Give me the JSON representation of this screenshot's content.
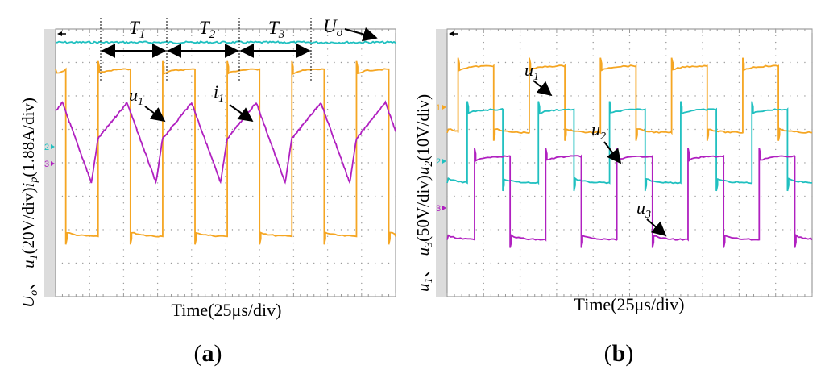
{
  "figure": {
    "a": {
      "tag_open": "(",
      "tag_letter": "a",
      "tag_close": ")"
    },
    "b": {
      "tag_open": "(",
      "tag_letter": "b",
      "tag_close": ")"
    }
  },
  "colors": {
    "ch1": "#f5a623",
    "ch2": "#20c0c0",
    "ch3": "#b020c0",
    "grid": "#999999"
  },
  "chart_data": [
    {
      "type": "line",
      "panel": "a",
      "title": "",
      "xlabel": "Time(25μs/div)",
      "ylabel": {
        "p1": "U",
        "p1_sub": "o",
        "p2": "、",
        "p3": "u",
        "p3_sub": "1",
        "p4": "(20V/div)",
        "p5": "i",
        "p5_sub": "p",
        "p6": "(1.88A/div)"
      },
      "x_divisions": 10,
      "y_divisions": 8,
      "grid": true,
      "channel_markers": [
        "2",
        "3"
      ],
      "annotations": {
        "T1": {
          "base": "T",
          "sub": "1"
        },
        "T2": {
          "base": "T",
          "sub": "2"
        },
        "T3": {
          "base": "T",
          "sub": "3"
        },
        "Uo": {
          "base": "U",
          "sub": "o"
        },
        "u1": {
          "base": "u",
          "sub": "1"
        },
        "i1": {
          "base": "i",
          "sub": "1"
        }
      },
      "series": [
        {
          "name": "Uo",
          "color": "#20c0c0",
          "shape": "dc",
          "level_div": 7.6
        },
        {
          "name": "u1",
          "color": "#f5a623",
          "shape": "square",
          "high_div": 6.8,
          "low_div": 1.8,
          "period_div": 1.9,
          "first_rise_div": 1.25
        },
        {
          "name": "ip",
          "color": "#b020c0",
          "shape": "trapezoid",
          "high_div": 5.8,
          "low_div": 3.4,
          "period_div": 1.9
        }
      ]
    },
    {
      "type": "line",
      "panel": "b",
      "title": "",
      "xlabel": "Time(25μs/div)",
      "ylabel": {
        "p1": "u",
        "p1_sub": "1",
        "p2": "、",
        "p3": "u",
        "p3_sub": "3",
        "p4": "(50V/div)",
        "p5": "u",
        "p5_sub": "2",
        "p6": "(10V/div)"
      },
      "x_divisions": 10,
      "y_divisions": 8,
      "grid": true,
      "channel_markers": [
        "1",
        "2",
        "3"
      ],
      "annotations": {
        "u1": {
          "base": "u",
          "sub": "1"
        },
        "u2": {
          "base": "u",
          "sub": "2"
        },
        "u3": {
          "base": "u",
          "sub": "3"
        }
      },
      "series": [
        {
          "name": "u1",
          "color": "#f5a623",
          "shape": "square",
          "high_div": 6.9,
          "low_div": 4.9,
          "period_div": 1.95,
          "first_rise_div": 0.3
        },
        {
          "name": "u2",
          "color": "#20c0c0",
          "shape": "square",
          "high_div": 5.6,
          "low_div": 3.4,
          "period_div": 1.95,
          "first_rise_div": 0.55
        },
        {
          "name": "u3",
          "color": "#b020c0",
          "shape": "square",
          "high_div": 4.2,
          "low_div": 1.7,
          "period_div": 1.95,
          "first_rise_div": 0.75
        }
      ]
    }
  ]
}
